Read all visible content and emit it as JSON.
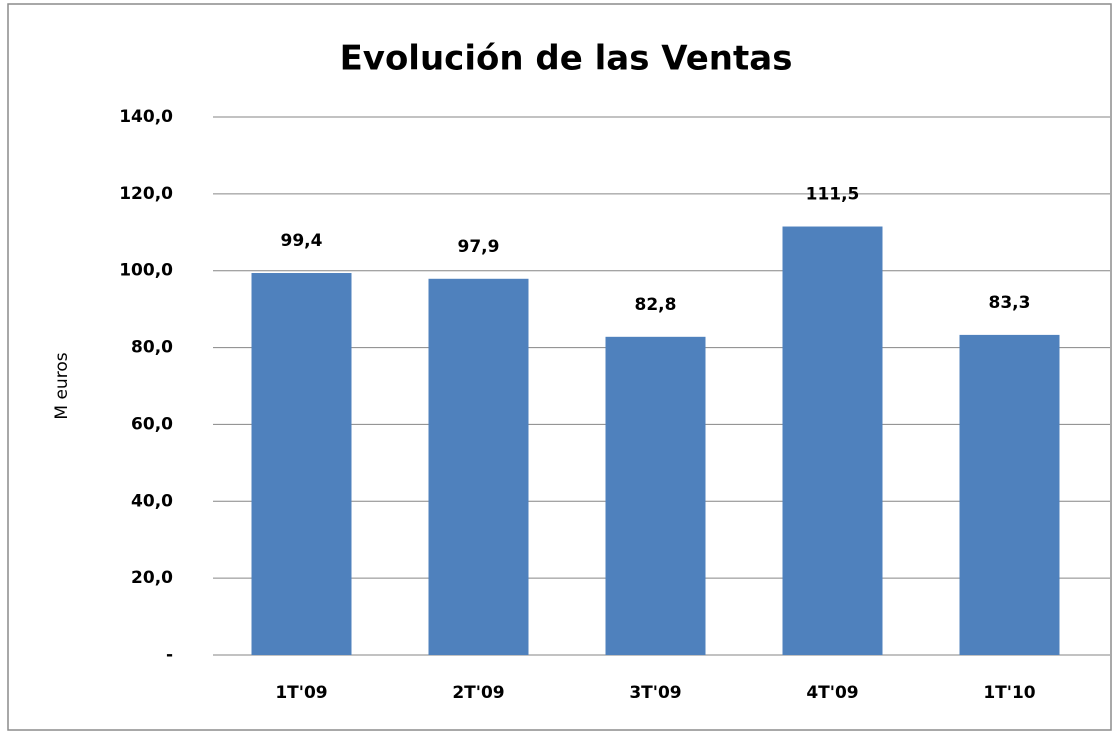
{
  "chart_data": {
    "type": "bar",
    "title": "Evolución de las Ventas",
    "ylabel": "M euros",
    "categories": [
      "1T'09",
      "2T'09",
      "3T'09",
      "4T'09",
      "1T'10"
    ],
    "values": [
      99.4,
      97.9,
      82.8,
      111.5,
      83.3
    ],
    "value_labels": [
      "99,4",
      "97,9",
      "82,8",
      "111,5",
      "83,3"
    ],
    "color": "#4f81bd",
    "ylim": [
      0,
      140
    ],
    "yticks": [
      {
        "value": 0,
        "label": "-"
      },
      {
        "value": 20,
        "label": "20,0"
      },
      {
        "value": 40,
        "label": "40,0"
      },
      {
        "value": 60,
        "label": "60,0"
      },
      {
        "value": 80,
        "label": "80,0"
      },
      {
        "value": 100,
        "label": "100,0"
      },
      {
        "value": 120,
        "label": "120,0"
      },
      {
        "value": 140,
        "label": "140,0"
      }
    ],
    "grid": true
  }
}
